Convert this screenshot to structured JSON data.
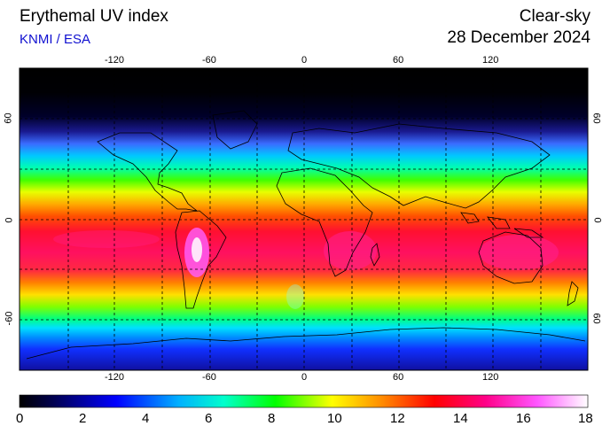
{
  "header": {
    "title": "Erythemal UV index",
    "subtitle": "KNMI / ESA",
    "mode": "Clear-sky",
    "date": "28 December 2024"
  },
  "map": {
    "lon_ticks": [
      "-120",
      "-60",
      "0",
      "60",
      "120"
    ],
    "lat_ticks_left": [
      "60",
      "0",
      "-60"
    ],
    "lat_ticks_right": [
      "60",
      "0",
      "60"
    ],
    "gridlines": "dashed, every 30 degrees"
  },
  "colorbar": {
    "labels": [
      "0",
      "2",
      "4",
      "6",
      "8",
      "10",
      "12",
      "14",
      "16",
      "18"
    ],
    "min": 0,
    "max": 18,
    "colors": [
      "#000000",
      "#000060",
      "#0000ff",
      "#00aaff",
      "#00ffcc",
      "#00ff00",
      "#ffff00",
      "#ff8800",
      "#ff0000",
      "#ff0088",
      "#ff55ff",
      "#ffffff"
    ]
  }
}
